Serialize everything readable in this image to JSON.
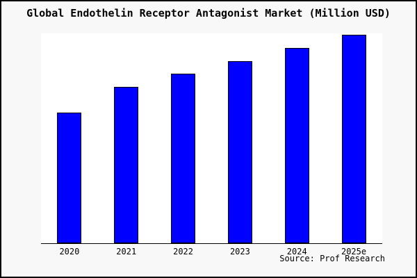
{
  "title": "Global Endothelin Receptor Antagonist Market (Million USD)",
  "source": "Source: Prof Research",
  "colors": {
    "bar_fill": "#0000ff",
    "bar_border": "#000000",
    "background": "#f8f8f8",
    "plot_background": "#ffffff",
    "axis": "#000000",
    "frame_border": "#000000",
    "text": "#000000"
  },
  "chart_data": {
    "type": "bar",
    "title": "Global Endothelin Receptor Antagonist Market (Million USD)",
    "unit": "Million USD",
    "categories": [
      "2020",
      "2021",
      "2022",
      "2023",
      "2024",
      "2025e"
    ],
    "values_relative_pct_of_max": [
      62.7,
      75.0,
      81.3,
      87.3,
      93.7,
      100.0
    ],
    "value_scale_note": "y-axis has no tick labels; values normalized so tallest bar (2025e) = 100",
    "xlabel": "",
    "ylabel": "",
    "y_axis_labels_visible": false,
    "grid": false,
    "legend": "none",
    "annotation": "Source: Prof Research",
    "annotation_position": "bottom-right"
  }
}
